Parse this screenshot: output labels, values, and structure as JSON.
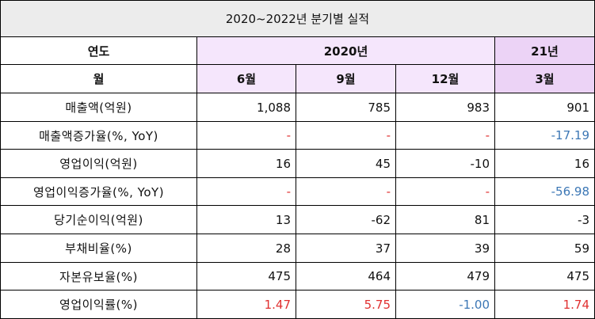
{
  "title": "2020~2022년 분기별 실적",
  "header": {
    "year_label": "연도",
    "year_2020": "2020년",
    "year_21": "21년",
    "month_label": "월",
    "months": [
      "6월",
      "9월",
      "12월",
      "3월"
    ]
  },
  "rows": [
    {
      "label": "매출액(억원)",
      "values": [
        "1,088",
        "785",
        "983",
        "901"
      ]
    },
    {
      "label": "매출액증가율(%, YoY)",
      "values": [
        "-",
        "-",
        "-",
        "-17.19"
      ]
    },
    {
      "label": "영업이익(억원)",
      "values": [
        "16",
        "45",
        "-10",
        "16"
      ]
    },
    {
      "label": "영업이익증가율(%, YoY)",
      "values": [
        "-",
        "-",
        "-",
        "-56.98"
      ]
    },
    {
      "label": "당기순이익(억원)",
      "values": [
        "13",
        "-62",
        "81",
        "-3"
      ]
    },
    {
      "label": "부채비율(%)",
      "values": [
        "28",
        "37",
        "39",
        "59"
      ]
    },
    {
      "label": "자본유보율(%)",
      "values": [
        "475",
        "464",
        "479",
        "475"
      ]
    },
    {
      "label": "영업이익률(%)",
      "values": [
        "1.47",
        "5.75",
        "-1.00",
        "1.74"
      ]
    }
  ],
  "colors": {
    "title_bg": "#ececec",
    "header_lavender": "#f5e6fc",
    "header_lavender_dark": "#ecd3f6",
    "negative_blue": "#3c77b5",
    "highlight_red": "#e03030"
  }
}
